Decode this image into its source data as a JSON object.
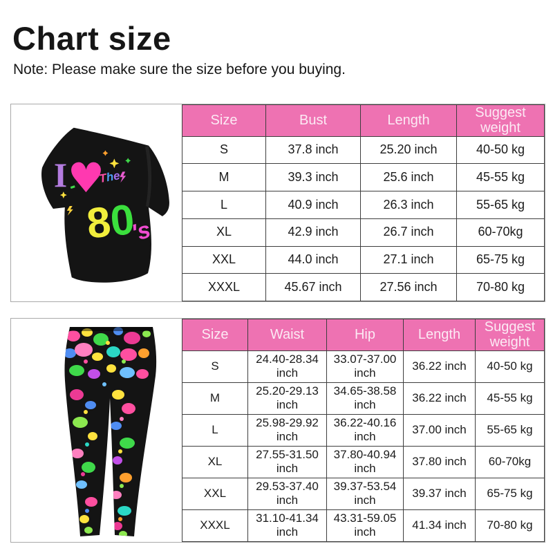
{
  "page": {
    "title": "Chart size",
    "note": "Note: Please make sure the size before you buying."
  },
  "colors": {
    "accent_pink": "#ee72b2",
    "header_text": "#fceaf4",
    "grid_line": "#3d3d3d",
    "outer_border": "#a9a9a9",
    "text": "#1b1b1b"
  },
  "tshirt_print": {
    "i": "I",
    "heart": "♥",
    "the_t": "T",
    "the_h": "h",
    "the_e": "e",
    "eight": "8",
    "zero": "0",
    "s": "'s"
  },
  "chart_data": [
    {
      "type": "table",
      "title": "T-shirt size chart",
      "columns": [
        "Size",
        "Bust",
        "Length",
        "Suggest weight"
      ],
      "rows": [
        [
          "S",
          "37.8 inch",
          "25.20 inch",
          "40-50 kg"
        ],
        [
          "M",
          "39.3 inch",
          "25.6 inch",
          "45-55 kg"
        ],
        [
          "L",
          "40.9 inch",
          "26.3 inch",
          "55-65 kg"
        ],
        [
          "XL",
          "42.9 inch",
          "26.7 inch",
          "60-70kg"
        ],
        [
          "XXL",
          "44.0 inch",
          "27.1 inch",
          "65-75 kg"
        ],
        [
          "XXXL",
          "45.67 inch",
          "27.56 inch",
          "70-80 kg"
        ]
      ]
    },
    {
      "type": "table",
      "title": "Leggings size chart",
      "columns": [
        "Size",
        "Waist",
        "Hip",
        "Length",
        "Suggest weight"
      ],
      "rows": [
        [
          "S",
          "24.40-28.34 inch",
          "33.07-37.00 inch",
          "36.22 inch",
          "40-50 kg"
        ],
        [
          "M",
          "25.20-29.13 inch",
          "34.65-38.58 inch",
          "36.22 inch",
          "45-55 kg"
        ],
        [
          "L",
          "25.98-29.92 inch",
          "36.22-40.16 inch",
          "37.00 inch",
          "55-65 kg"
        ],
        [
          "XL",
          "27.55-31.50 inch",
          "37.80-40.94 inch",
          "37.80 inch",
          "60-70kg"
        ],
        [
          "XXL",
          "29.53-37.40 inch",
          "39.37-53.54 inch",
          "39.37 inch",
          "65-75 kg"
        ],
        [
          "XXXL",
          "31.10-41.34 inch",
          "43.31-59.05 inch",
          "41.34 inch",
          "70-80 kg"
        ]
      ]
    }
  ]
}
